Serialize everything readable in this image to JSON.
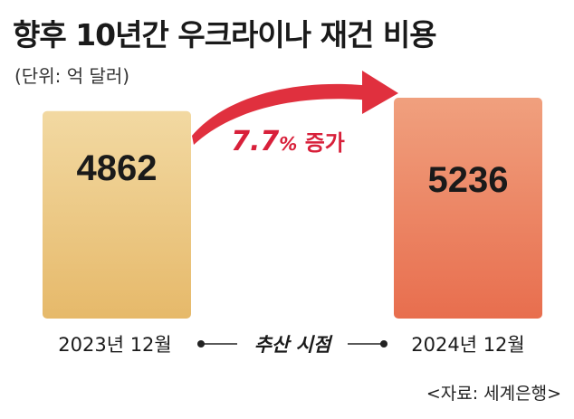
{
  "title": "향후 10년간 우크라이나 재건 비용",
  "unit": "(단위: 억 달러)",
  "source": "<자료: 세계은행>",
  "chart_data": {
    "type": "bar",
    "categories": [
      "2023년 12월",
      "2024년 12월"
    ],
    "values": [
      4862,
      5236
    ],
    "value_labels": [
      "4862",
      "5236"
    ],
    "annotation": {
      "value": "7.7",
      "percent_sign": "%",
      "suffix": " 증가"
    },
    "x_middle_label": "추산 시점",
    "colors": {
      "bar1_top": "#f2d9a2",
      "bar1_bottom": "#e6b96a",
      "bar2_top": "#f0a07e",
      "bar2_bottom": "#e86e4e",
      "arrow": "#e0303e",
      "annotation": "#d8203a"
    }
  }
}
